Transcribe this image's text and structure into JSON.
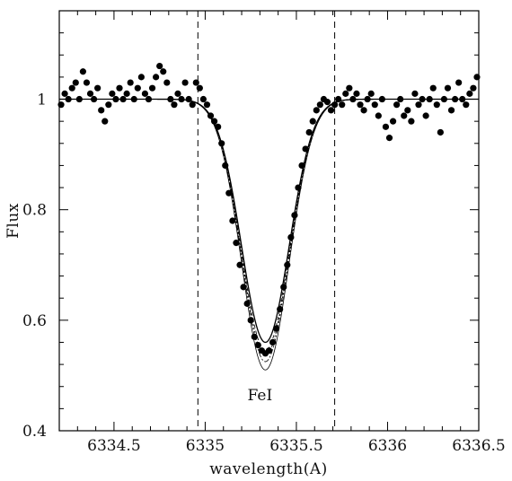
{
  "chart_data": {
    "type": "scatter",
    "title": "",
    "xlabel": "wavelength(A)",
    "ylabel": "Flux",
    "xlim": [
      6334.2,
      6336.5
    ],
    "ylim": [
      0.4,
      1.16
    ],
    "x_ticks": [
      6334.5,
      6335,
      6335.5,
      6336,
      6336.5
    ],
    "x_tick_labels": [
      "6334.5",
      "6335",
      "6335.5",
      "6336",
      "6336.5"
    ],
    "y_ticks": [
      0.4,
      0.6,
      0.8,
      1
    ],
    "y_tick_labels": [
      "0.4",
      "0.6",
      "0.8",
      "1"
    ],
    "grid": false,
    "legend": "none",
    "vlines": [
      6334.96,
      6335.71
    ],
    "annotations": [
      {
        "text": "FeI",
        "x": 6335.3,
        "y": 0.455
      }
    ],
    "line_profile": {
      "continuum": 1.0,
      "center": 6335.33,
      "sigma": 0.13,
      "depths": [
        0.44,
        0.455,
        0.465,
        0.475,
        0.49
      ]
    },
    "series": [
      {
        "marker": "filled-circle",
        "x": [
          6334.21,
          6334.23,
          6334.25,
          6334.27,
          6334.29,
          6334.31,
          6334.33,
          6334.35,
          6334.37,
          6334.39,
          6334.41,
          6334.43,
          6334.45,
          6334.47,
          6334.49,
          6334.51,
          6334.53,
          6334.55,
          6334.57,
          6334.59,
          6334.61,
          6334.63,
          6334.65,
          6334.67,
          6334.69,
          6334.71,
          6334.73,
          6334.75,
          6334.77,
          6334.79,
          6334.81,
          6334.83,
          6334.85,
          6334.87,
          6334.89,
          6334.91,
          6334.93,
          6334.95,
          6334.97,
          6334.99,
          6335.01,
          6335.03,
          6335.05,
          6335.07,
          6335.09,
          6335.11,
          6335.13,
          6335.15,
          6335.17,
          6335.19,
          6335.21,
          6335.23,
          6335.25,
          6335.27,
          6335.29,
          6335.31,
          6335.33,
          6335.35,
          6335.37,
          6335.39,
          6335.41,
          6335.43,
          6335.45,
          6335.47,
          6335.49,
          6335.51,
          6335.53,
          6335.55,
          6335.57,
          6335.59,
          6335.61,
          6335.63,
          6335.65,
          6335.67,
          6335.69,
          6335.71,
          6335.73,
          6335.75,
          6335.77,
          6335.79,
          6335.81,
          6335.83,
          6335.85,
          6335.87,
          6335.89,
          6335.91,
          6335.93,
          6335.95,
          6335.97,
          6335.99,
          6336.01,
          6336.03,
          6336.05,
          6336.07,
          6336.09,
          6336.11,
          6336.13,
          6336.15,
          6336.17,
          6336.19,
          6336.21,
          6336.23,
          6336.25,
          6336.27,
          6336.29,
          6336.31,
          6336.33,
          6336.35,
          6336.37,
          6336.39,
          6336.41,
          6336.43,
          6336.45,
          6336.47,
          6336.49
        ],
        "y": [
          0.99,
          1.01,
          1.0,
          1.02,
          1.03,
          1.0,
          1.05,
          1.03,
          1.01,
          1.0,
          1.02,
          0.98,
          0.96,
          0.99,
          1.01,
          1.0,
          1.02,
          1.0,
          1.01,
          1.03,
          1.0,
          1.02,
          1.04,
          1.01,
          1.0,
          1.02,
          1.04,
          1.06,
          1.05,
          1.03,
          1.0,
          0.99,
          1.01,
          1.0,
          1.03,
          1.0,
          0.99,
          1.03,
          1.02,
          1.0,
          0.99,
          0.97,
          0.96,
          0.95,
          0.92,
          0.88,
          0.83,
          0.78,
          0.74,
          0.7,
          0.66,
          0.63,
          0.6,
          0.57,
          0.555,
          0.545,
          0.54,
          0.545,
          0.56,
          0.585,
          0.62,
          0.66,
          0.7,
          0.75,
          0.79,
          0.84,
          0.88,
          0.91,
          0.94,
          0.96,
          0.98,
          0.99,
          1.0,
          0.995,
          0.98,
          0.99,
          1.0,
          0.99,
          1.01,
          1.02,
          1.0,
          1.01,
          0.99,
          0.98,
          1.0,
          1.01,
          0.99,
          0.97,
          1.0,
          0.95,
          0.93,
          0.96,
          0.99,
          1.0,
          0.97,
          0.98,
          0.96,
          1.01,
          0.99,
          1.0,
          0.97,
          1.0,
          1.02,
          0.99,
          0.94,
          1.0,
          1.02,
          0.98,
          1.0,
          1.03,
          1.0,
          0.99,
          1.01,
          1.02,
          1.04
        ]
      }
    ]
  }
}
